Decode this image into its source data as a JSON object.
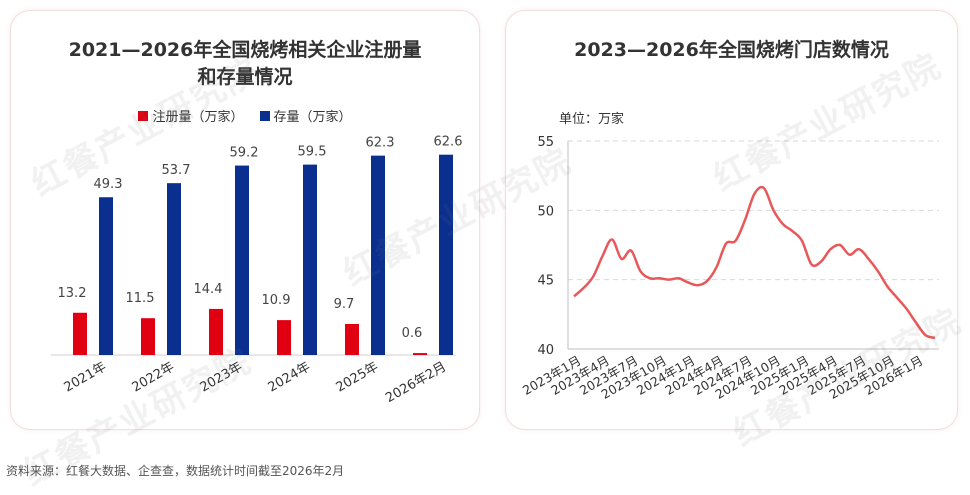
{
  "watermark": "红餐产业研究院",
  "source": "资料来源：红餐大数据、企查查，数据统计时间截至2026年2月",
  "colors": {
    "registrations": "#e00012",
    "stock": "#0a2f8f",
    "line": "#e8585a",
    "grid": "#d9d9d9"
  },
  "chart_data": [
    {
      "type": "bar",
      "title": "2021—2026年全国烧烤相关企业注册量和存量情况",
      "categories": [
        "2021年",
        "2022年",
        "2023年",
        "2024年",
        "2025年",
        "2026年2月"
      ],
      "series": [
        {
          "name": "注册量（万家）",
          "values": [
            13.2,
            11.5,
            14.4,
            10.9,
            9.7,
            0.6
          ],
          "labels": [
            "13.2",
            "11.5",
            "14.4",
            "10.9",
            "9.7",
            "0.6"
          ]
        },
        {
          "name": "存量（万家）",
          "values": [
            49.3,
            53.7,
            59.2,
            59.5,
            62.3,
            62.6
          ],
          "labels": [
            "49.3",
            "53.7",
            "59.2",
            "59.5",
            "62.3",
            "62.6"
          ]
        }
      ],
      "ylim": [
        0,
        70
      ],
      "legend": "top-center",
      "grid": false
    },
    {
      "type": "line",
      "title": "2023—2026年全国烧烤门店数情况",
      "unit_label": "单位：万家",
      "x_ticks": [
        "2023年1月",
        "2023年4月",
        "2023年7月",
        "2023年10月",
        "2024年1月",
        "2024年4月",
        "2024年7月",
        "2024年10月",
        "2025年1月",
        "2025年4月",
        "2025年7月",
        "2025年10月",
        "2026年1月"
      ],
      "y_ticks": [
        40,
        45,
        50,
        55
      ],
      "ylim": [
        40,
        55
      ],
      "grid": true,
      "x": [
        0,
        1,
        2,
        3,
        4,
        5,
        6,
        7,
        8,
        9,
        10,
        11,
        12,
        13,
        14,
        15,
        16,
        17,
        18,
        19,
        20,
        21,
        22,
        23,
        24,
        25,
        26,
        27,
        28,
        29,
        30,
        31,
        32,
        33,
        34,
        35,
        36,
        37,
        38
      ],
      "y": [
        43.8,
        44.4,
        45.2,
        46.7,
        47.9,
        46.5,
        47.1,
        45.6,
        45.1,
        45.1,
        45.0,
        45.1,
        44.8,
        44.6,
        44.9,
        45.9,
        47.6,
        47.8,
        49.3,
        51.2,
        51.6,
        50.0,
        49.0,
        48.5,
        47.8,
        46.1,
        46.3,
        47.2,
        47.5,
        46.8,
        47.2,
        46.5,
        45.6,
        44.5,
        43.7,
        42.9,
        41.9,
        41.0,
        40.8
      ]
    }
  ]
}
